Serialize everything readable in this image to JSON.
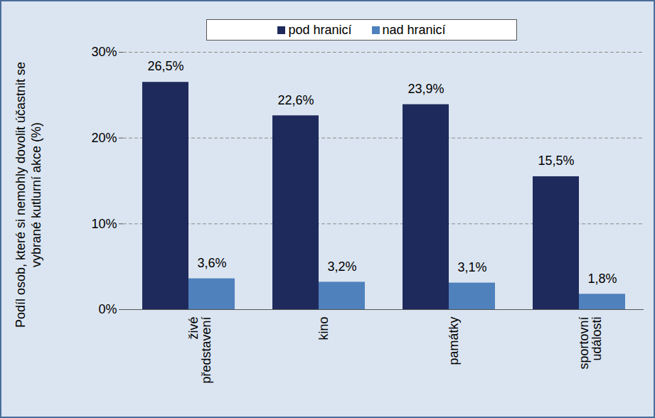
{
  "chart_data": {
    "type": "bar",
    "y_label": "Podíl osob, které si nemohly dovolit účastnit se vybrané kutlurní akce (%)",
    "categories": [
      "živé představení",
      "kino",
      "památky",
      "sportovní události"
    ],
    "series": [
      {
        "name": "pod hranicí",
        "color": "#1f2a5c",
        "values": [
          26.5,
          22.6,
          23.9,
          15.5
        ],
        "value_labels": [
          "26,5%",
          "22,6%",
          "23,9%",
          "15,5%"
        ]
      },
      {
        "name": "nad hranicí",
        "color": "#4f81bd",
        "values": [
          3.6,
          3.2,
          3.1,
          1.8
        ],
        "value_labels": [
          "3,6%",
          "3,2%",
          "3,1%",
          "1,8%"
        ]
      }
    ],
    "ylim": [
      0,
      30
    ],
    "yticks": [
      {
        "value": 0,
        "label": "0%"
      },
      {
        "value": 10,
        "label": "10%"
      },
      {
        "value": 20,
        "label": "20%"
      },
      {
        "value": 30,
        "label": "30%"
      }
    ],
    "grid": true,
    "legend": "top",
    "data_labels": true
  }
}
